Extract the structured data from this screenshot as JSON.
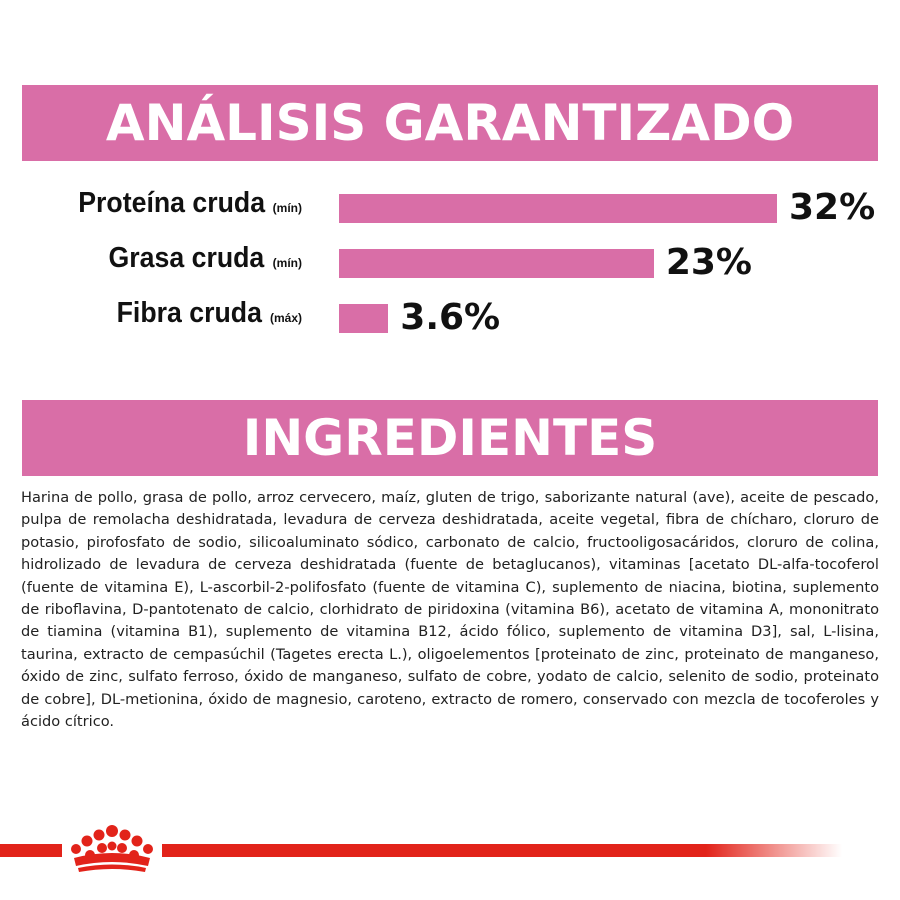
{
  "analysis": {
    "title": "ANÁLISIS GARANTIZADO",
    "rows": [
      {
        "name": "Proteína cruda",
        "qualifier": "(mín)",
        "value_text": "32%",
        "value": 32
      },
      {
        "name": "Grasa cruda",
        "qualifier": "(mín)",
        "value_text": "23%",
        "value": 23
      },
      {
        "name": "Fibra cruda",
        "qualifier": "(máx)",
        "value_text": "3.6%",
        "value": 3.6
      }
    ]
  },
  "ingredients": {
    "title": "INGREDIENTES",
    "text": "Harina de pollo, grasa de pollo, arroz cervecero, maíz, gluten de trigo, saborizante natural (ave), aceite de pescado, pulpa de remolacha deshidratada, levadura de cerveza deshidratada, aceite vegetal, fibra de chícharo, cloruro de potasio, pirofosfato de sodio, silicoaluminato sódico, carbonato de calcio, fructooligosacáridos, cloruro de colina, hidrolizado de levadura de cerveza deshidratada (fuente de betaglucanos), vitaminas [acetato DL-alfa-tocoferol (fuente de vitamina E), L-ascorbil-2-polifosfato (fuente de vitamina C), suplemento de niacina, biotina, suplemento de riboflavina, D-pantotenato de calcio, clorhidrato de piridoxina (vitamina B6), acetato de vitamina A, mononitrato de tiamina (vitamina B1), suplemento de vitamina B12, ácido fólico, suplemento de vitamina D3], sal, L-lisina, taurina, extracto de cempasúchil (Tagetes erecta L.), oligoelementos [proteinato de zinc, proteinato de manganeso, óxido de zinc, sulfato ferroso, óxido de manganeso, sulfato de cobre, yodato de calcio, selenito de sodio, proteinato de cobre], DL-metionina, óxido de magnesio, caroteno, extracto de romero, conservado con mezcla de tocoferoles y ácido cítrico."
  },
  "colors": {
    "banner": "#d96ea7",
    "bar": "#d96ea7",
    "brand_red": "#e2231a"
  },
  "footer": {
    "logo_icon": "crown-logo-icon"
  }
}
